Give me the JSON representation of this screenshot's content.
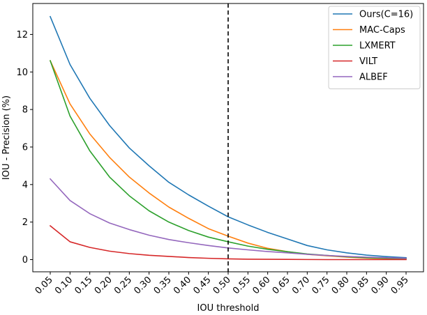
{
  "chart_data": {
    "type": "line",
    "title": "",
    "xlabel": "IOU threshold",
    "ylabel": "IOU - Precision (%)",
    "x": [
      "0.05",
      "0.10",
      "0.15",
      "0.20",
      "0.25",
      "0.30",
      "0.35",
      "0.40",
      "0.45",
      "0.50",
      "0.55",
      "0.60",
      "0.65",
      "0.70",
      "0.75",
      "0.80",
      "0.85",
      "0.90",
      "0.95"
    ],
    "ylim": [
      -0.65,
      13.65
    ],
    "yticks": [
      0,
      2,
      4,
      6,
      8,
      10,
      12
    ],
    "grid": false,
    "legend_position": "top-right",
    "vline": {
      "x": "0.50",
      "style": "dashed",
      "color": "#000000"
    },
    "series": [
      {
        "name": "Ours(C=16)",
        "color": "#1f77b4",
        "values": [
          12.95,
          10.4,
          8.6,
          7.15,
          5.95,
          5.0,
          4.12,
          3.45,
          2.85,
          2.28,
          1.85,
          1.45,
          1.1,
          0.75,
          0.52,
          0.36,
          0.24,
          0.16,
          0.1
        ]
      },
      {
        "name": "MAC-Caps",
        "color": "#ff7f0e",
        "values": [
          10.6,
          8.3,
          6.7,
          5.45,
          4.4,
          3.55,
          2.8,
          2.2,
          1.65,
          1.25,
          0.88,
          0.6,
          0.42,
          0.28,
          0.2,
          0.13,
          0.08,
          0.05,
          0.03
        ]
      },
      {
        "name": "LXMERT",
        "color": "#2ca02c",
        "values": [
          10.6,
          7.65,
          5.8,
          4.4,
          3.4,
          2.6,
          2.0,
          1.55,
          1.2,
          0.95,
          0.72,
          0.55,
          0.42,
          0.3,
          0.22,
          0.15,
          0.1,
          0.07,
          0.05
        ]
      },
      {
        "name": "VILT",
        "color": "#d62728",
        "values": [
          1.8,
          0.95,
          0.65,
          0.45,
          0.32,
          0.23,
          0.17,
          0.11,
          0.07,
          0.04,
          0.02,
          0.015,
          0.01,
          0.005,
          0.0,
          0.0,
          0.0,
          0.0,
          0.0
        ]
      },
      {
        "name": "ALBEF",
        "color": "#9467bd",
        "values": [
          4.3,
          3.15,
          2.45,
          1.95,
          1.6,
          1.3,
          1.07,
          0.9,
          0.75,
          0.62,
          0.52,
          0.43,
          0.36,
          0.28,
          0.22,
          0.17,
          0.13,
          0.1,
          0.07
        ]
      }
    ]
  }
}
